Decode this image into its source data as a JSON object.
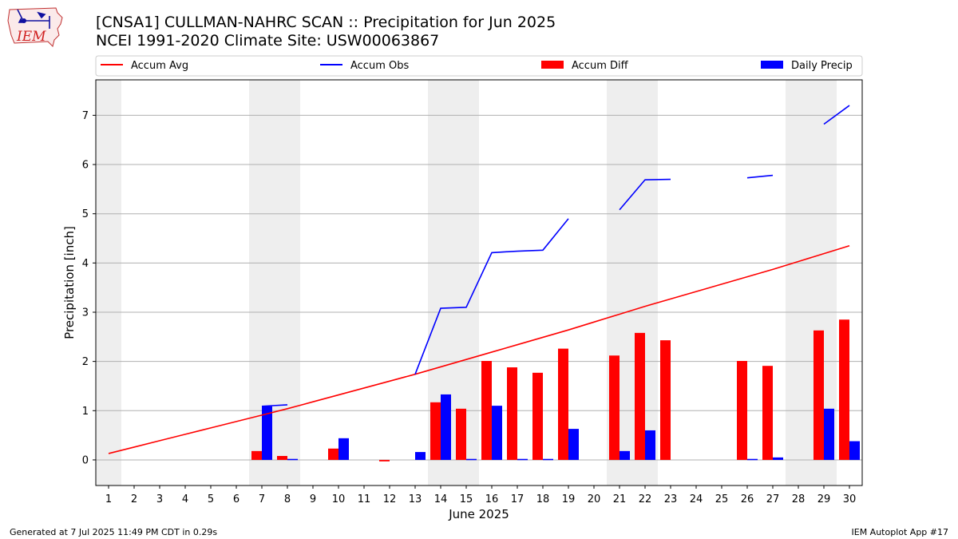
{
  "header": {
    "title_line1": "[CNSA1] CULLMAN-NAHRC SCAN :: Precipitation for Jun 2025",
    "title_line2": "NCEI 1991-2020 Climate Site: USW00063867"
  },
  "logo": {
    "text": "IEM"
  },
  "footer": {
    "left": "Generated at 7 Jul 2025 11:49 PM CDT in 0.29s",
    "right": "IEM Autoplot App #17"
  },
  "colors": {
    "avg": "#ff0000",
    "obs": "#0000ff",
    "diff": "#ff0000",
    "daily": "#0000ff",
    "weekend": "#eeeeee",
    "grid": "#b0b0b0"
  },
  "chart_data": {
    "type": "bar",
    "title": "[CNSA1] CULLMAN-NAHRC SCAN :: Precipitation for Jun 2025",
    "subtitle": "NCEI 1991-2020 Climate Site: USW00063867",
    "xlabel": "June 2025",
    "ylabel": "Precipitation [inch]",
    "xlim": [
      0.5,
      30.5
    ],
    "ylim": [
      -0.52,
      7.72
    ],
    "yticks": [
      0,
      1,
      2,
      3,
      4,
      5,
      6,
      7
    ],
    "x": [
      1,
      2,
      3,
      4,
      5,
      6,
      7,
      8,
      9,
      10,
      11,
      12,
      13,
      14,
      15,
      16,
      17,
      18,
      19,
      20,
      21,
      22,
      23,
      24,
      25,
      26,
      27,
      28,
      29,
      30
    ],
    "grid": true,
    "legend_position": "top",
    "legend": [
      "Accum Avg",
      "Accum Obs",
      "Accum Diff",
      "Daily Precip"
    ],
    "weekend_spans": [
      [
        0.5,
        1.5
      ],
      [
        6.5,
        8.5
      ],
      [
        13.5,
        15.5
      ],
      [
        20.5,
        22.5
      ],
      [
        27.5,
        29.5
      ]
    ],
    "series": [
      {
        "name": "Accum Avg",
        "type": "line",
        "values": [
          0.13,
          0.26,
          0.39,
          0.52,
          0.65,
          0.78,
          0.91,
          1.04,
          1.18,
          1.32,
          1.46,
          1.6,
          1.74,
          1.89,
          2.04,
          2.19,
          2.34,
          2.49,
          2.64,
          2.8,
          2.96,
          3.12,
          3.27,
          3.42,
          3.57,
          3.72,
          3.87,
          4.03,
          4.19,
          4.35
        ]
      },
      {
        "name": "Accum Obs",
        "type": "line",
        "values": [
          null,
          null,
          null,
          null,
          null,
          null,
          1.09,
          1.12,
          null,
          null,
          null,
          null,
          1.74,
          3.08,
          3.1,
          4.21,
          4.24,
          4.26,
          4.9,
          null,
          5.08,
          5.69,
          5.7,
          null,
          null,
          5.73,
          5.78,
          null,
          6.82,
          7.2
        ]
      },
      {
        "name": "Accum Diff",
        "type": "bar",
        "values": [
          null,
          null,
          null,
          null,
          null,
          null,
          0.18,
          0.08,
          null,
          0.23,
          null,
          -0.03,
          null,
          1.17,
          1.04,
          2.01,
          1.88,
          1.77,
          2.26,
          null,
          2.12,
          2.58,
          2.43,
          null,
          null,
          2.01,
          1.91,
          null,
          2.63,
          2.85
        ]
      },
      {
        "name": "Daily Precip",
        "type": "bar",
        "values": [
          0,
          0,
          0,
          0,
          0,
          0,
          1.09,
          0.02,
          0,
          0.44,
          0,
          0,
          0.16,
          1.33,
          0.02,
          1.1,
          0.02,
          0.02,
          0.63,
          0,
          0.18,
          0.6,
          0,
          0,
          0,
          0.02,
          0.05,
          0,
          1.04,
          0.38
        ]
      }
    ]
  }
}
